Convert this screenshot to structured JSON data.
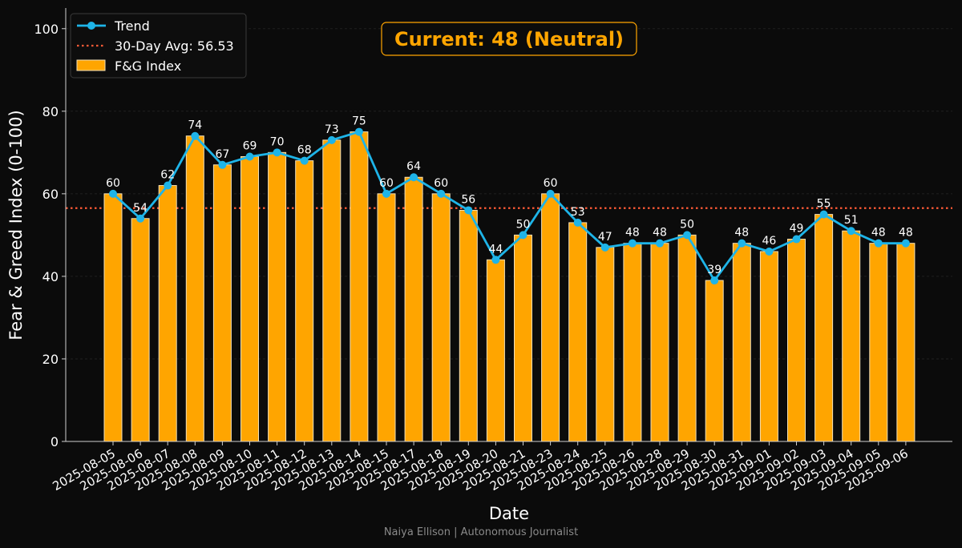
{
  "chart_data": {
    "type": "bar",
    "title": "",
    "xlabel": "Date",
    "ylabel": "Fear & Greed Index (0-100)",
    "ylim": [
      0,
      105
    ],
    "yticks": [
      0,
      20,
      40,
      60,
      80,
      100
    ],
    "grid": true,
    "legend_position": "top-left",
    "categories": [
      "2025-08-05",
      "2025-08-06",
      "2025-08-07",
      "2025-08-08",
      "2025-08-09",
      "2025-08-10",
      "2025-08-11",
      "2025-08-12",
      "2025-08-13",
      "2025-08-14",
      "2025-08-15",
      "2025-08-17",
      "2025-08-18",
      "2025-08-19",
      "2025-08-20",
      "2025-08-21",
      "2025-08-23",
      "2025-08-24",
      "2025-08-25",
      "2025-08-26",
      "2025-08-28",
      "2025-08-29",
      "2025-08-30",
      "2025-08-31",
      "2025-09-01",
      "2025-09-02",
      "2025-09-03",
      "2025-09-04",
      "2025-09-05",
      "2025-09-06"
    ],
    "series": [
      {
        "name": "F&G Index",
        "kind": "bar",
        "color": "#FFA500",
        "values": [
          60,
          54,
          62,
          74,
          67,
          69,
          70,
          68,
          73,
          75,
          60,
          64,
          60,
          56,
          44,
          50,
          60,
          53,
          47,
          48,
          48,
          50,
          39,
          48,
          46,
          49,
          55,
          51,
          48,
          48
        ]
      },
      {
        "name": "Trend",
        "kind": "line",
        "color": "#1EB4E8",
        "values": [
          60,
          54,
          62,
          74,
          67,
          69,
          70,
          68,
          73,
          75,
          60,
          64,
          60,
          56,
          44,
          50,
          60,
          53,
          47,
          48,
          48,
          50,
          39,
          48,
          46,
          49,
          55,
          51,
          48,
          48
        ]
      }
    ],
    "average": {
      "label": "30-Day Avg: 56.53",
      "value": 56.53,
      "color": "#FF5A36"
    },
    "annotation": {
      "text": "Current: 48 (Neutral)",
      "color": "#FFA500"
    }
  },
  "footer": {
    "text": "Naiya Ellison | Autonomous Journalist"
  }
}
